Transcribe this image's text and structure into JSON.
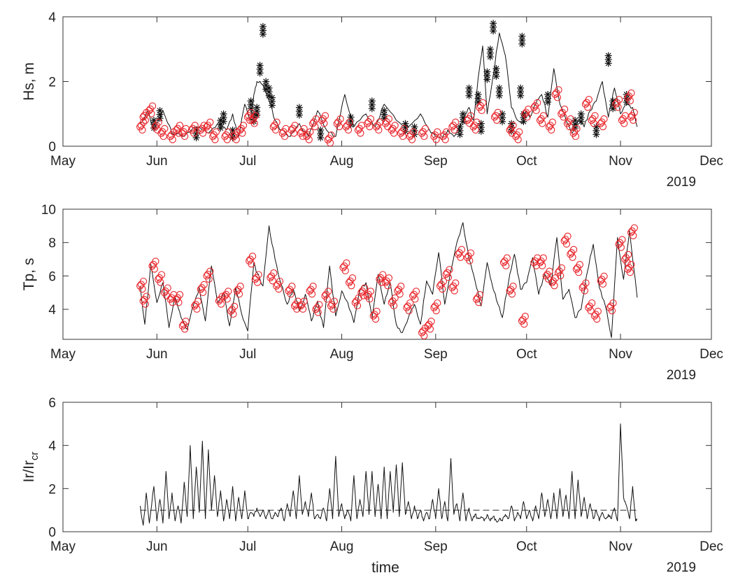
{
  "figure": {
    "xlabel": "time",
    "colors": {
      "line": "#111111",
      "marker_black": "#111111",
      "marker_red": "#e8242a",
      "axis": "#333333",
      "dash": "#111111"
    },
    "x_axis": {
      "range_days": [
        0,
        214
      ],
      "tick_days": [
        0,
        31,
        61,
        92,
        123,
        153,
        184,
        214
      ],
      "tick_labels": [
        "May",
        "Jun",
        "Jul",
        "Aug",
        "Sep",
        "Oct",
        "Nov",
        "Dec"
      ],
      "year_label": "2019"
    },
    "data_span_days": [
      25.5,
      189.5
    ]
  },
  "chart_data": [
    {
      "type": "line",
      "id": "hs",
      "ylabel": "Hs, m",
      "ylim": [
        0,
        4
      ],
      "yticks": [
        0,
        2,
        4
      ],
      "xlabel": "",
      "series": [
        {
          "name": "Hs",
          "style": "line",
          "x": [
            25.5,
            28,
            30,
            33,
            36,
            40,
            44,
            48,
            51,
            54,
            56,
            58,
            60,
            61,
            62,
            63,
            64,
            66,
            68,
            70,
            72,
            75,
            78,
            81,
            84,
            87,
            90,
            93,
            96,
            100,
            103,
            106,
            110,
            114,
            118,
            121,
            123,
            125,
            127,
            129,
            131,
            132.5,
            134,
            135.5,
            137,
            138.5,
            140,
            142,
            144,
            146,
            148,
            150,
            152,
            153,
            154,
            156,
            158,
            160,
            162,
            164,
            166,
            168,
            170,
            172,
            174,
            176,
            178,
            180,
            182,
            184,
            186,
            188,
            189.5
          ],
          "y": [
            0.7,
            1.1,
            0.5,
            1.1,
            0.4,
            0.3,
            0.6,
            0.4,
            0.7,
            0.5,
            1.0,
            0.3,
            1.3,
            1.0,
            0.8,
            1.6,
            2.0,
            1.9,
            1.4,
            0.8,
            0.5,
            0.3,
            0.7,
            0.3,
            1.1,
            0.5,
            0.3,
            1.6,
            0.6,
            1.0,
            0.6,
            1.3,
            0.8,
            0.6,
            1.0,
            0.5,
            0.3,
            0.2,
            0.5,
            0.3,
            0.6,
            0.9,
            1.2,
            0.8,
            2.1,
            3.1,
            1.0,
            2.2,
            3.5,
            2.8,
            1.2,
            0.8,
            0.7,
            1.1,
            0.9,
            1.3,
            1.6,
            0.9,
            2.4,
            1.3,
            0.8,
            0.4,
            0.8,
            0.6,
            1.1,
            1.4,
            2.0,
            0.9,
            1.8,
            1.0,
            1.3,
            1.2,
            0.6
          ]
        },
        {
          "name": "black-asterisk events",
          "style": "marker-star",
          "x": [
            30,
            32,
            44,
            52,
            53,
            56,
            62,
            63,
            64,
            65,
            66,
            67,
            68,
            69,
            78,
            85,
            95,
            102,
            106,
            113,
            116,
            131,
            132,
            134,
            137,
            138,
            140,
            141,
            142,
            143,
            144,
            145,
            148,
            151,
            151.5,
            152,
            160,
            169,
            171,
            176,
            180,
            181.5,
            186
          ],
          "y": [
            0.8,
            1.1,
            0.5,
            0.8,
            1.0,
            0.5,
            1.4,
            1.0,
            1.2,
            2.5,
            3.7,
            2.0,
            1.8,
            1.5,
            1.2,
            0.5,
            0.9,
            1.4,
            1.1,
            0.7,
            0.6,
            0.6,
            1.0,
            1.8,
            1.6,
            0.7,
            2.3,
            3.0,
            3.8,
            2.4,
            1.8,
            1.0,
            0.7,
            1.8,
            3.4,
            1.0,
            1.6,
            0.8,
            1.0,
            0.6,
            2.8,
            1.4,
            1.6
          ]
        },
        {
          "name": "red-circle events",
          "style": "marker-circle",
          "x": [
            26,
            27,
            29,
            31,
            33,
            36,
            38,
            40,
            43,
            46,
            48,
            50,
            54,
            57,
            59,
            61.5,
            63,
            70,
            73,
            76,
            79,
            81,
            83,
            86,
            88,
            91,
            94,
            98,
            101,
            104,
            107,
            109,
            112,
            115,
            119,
            123,
            126,
            129,
            134,
            136,
            138,
            143,
            148,
            150,
            153,
            156,
            158,
            161,
            163,
            165,
            167,
            169,
            173,
            175,
            178,
            183,
            185,
            187,
            188
          ],
          "y": [
            0.6,
            0.9,
            1.1,
            0.6,
            0.4,
            0.3,
            0.5,
            0.4,
            0.5,
            0.5,
            0.6,
            0.3,
            0.3,
            0.3,
            0.5,
            0.9,
            0.8,
            0.6,
            0.4,
            0.5,
            0.4,
            0.3,
            0.7,
            0.8,
            0.2,
            0.7,
            0.6,
            0.5,
            0.7,
            0.6,
            0.7,
            0.5,
            0.4,
            0.3,
            0.4,
            0.3,
            0.3,
            0.6,
            0.8,
            0.6,
            1.2,
            0.9,
            0.5,
            0.3,
            1.0,
            1.2,
            0.8,
            0.6,
            1.6,
            1.0,
            0.7,
            0.4,
            1.3,
            0.8,
            0.7,
            1.3,
            0.8,
            1.5,
            0.9
          ]
        }
      ]
    },
    {
      "type": "line",
      "id": "tp",
      "ylabel": "Tp, s",
      "ylim": [
        2.2,
        10
      ],
      "yticks": [
        4,
        6,
        8,
        10
      ],
      "xlabel": "",
      "series": [
        {
          "name": "Tp",
          "style": "line",
          "x": [
            25.5,
            27,
            29,
            31,
            33,
            35,
            37,
            39,
            41,
            43,
            45,
            47,
            49,
            51,
            53,
            55,
            57,
            59,
            61,
            63,
            64,
            66,
            68,
            70,
            72,
            74,
            76,
            78,
            80,
            82,
            84,
            86,
            88,
            90,
            92,
            94,
            96,
            98,
            100,
            102,
            104,
            106,
            108,
            110,
            112,
            114,
            116,
            118,
            120,
            122,
            124,
            126,
            128,
            130,
            132,
            134,
            136,
            138,
            140,
            142,
            143,
            145,
            147,
            149,
            151,
            153,
            155,
            157,
            159,
            161,
            163,
            165,
            167,
            169,
            171,
            173,
            175,
            177,
            179,
            181,
            183,
            185,
            187,
            189.5
          ],
          "y": [
            5.4,
            3.1,
            6.7,
            4.4,
            5.6,
            2.9,
            4.7,
            3.5,
            2.8,
            4.2,
            5.3,
            3.3,
            6.6,
            4.4,
            5.0,
            3.0,
            5.3,
            3.7,
            2.7,
            6.8,
            6.2,
            5.4,
            9.0,
            7.0,
            5.5,
            4.3,
            5.2,
            3.9,
            4.9,
            3.3,
            4.5,
            2.9,
            6.6,
            3.6,
            5.1,
            4.4,
            3.2,
            5.1,
            5.6,
            3.5,
            6.1,
            4.3,
            5.6,
            3.1,
            2.6,
            3.5,
            4.3,
            3.1,
            5.7,
            4.9,
            7.4,
            4.3,
            6.3,
            8.0,
            9.2,
            7.0,
            5.7,
            4.2,
            6.8,
            5.2,
            4.6,
            3.5,
            5.6,
            7.3,
            5.2,
            5.6,
            7.1,
            4.9,
            6.1,
            5.4,
            8.3,
            4.6,
            5.2,
            3.5,
            4.0,
            6.2,
            7.9,
            5.3,
            4.2,
            2.3,
            8.3,
            5.8,
            8.7,
            4.7
          ]
        },
        {
          "name": "red-circle events",
          "style": "marker-circle",
          "x": [
            26,
            27,
            30,
            32,
            34,
            36,
            38,
            40,
            44,
            46,
            48,
            52,
            54,
            56,
            58,
            62,
            64,
            69,
            71,
            75,
            77,
            79,
            82,
            84,
            87,
            89,
            93,
            95,
            97,
            99,
            101,
            103,
            105,
            107,
            109,
            111,
            114,
            116,
            119,
            121,
            123,
            125,
            127,
            129,
            131,
            134,
            137,
            146,
            148,
            152,
            156,
            158,
            160,
            162,
            164,
            166,
            168,
            170,
            172,
            174,
            176,
            178,
            181,
            184,
            186,
            187,
            188
          ],
          "y": [
            5.4,
            4.5,
            6.6,
            5.8,
            5.0,
            4.6,
            4.6,
            3.0,
            4.2,
            5.2,
            6.0,
            4.5,
            4.8,
            3.9,
            5.1,
            6.9,
            5.8,
            5.9,
            5.4,
            5.1,
            4.2,
            4.2,
            5.1,
            4.0,
            4.8,
            4.2,
            6.5,
            5.6,
            4.4,
            5.0,
            4.8,
            3.6,
            5.8,
            5.6,
            4.4,
            5.1,
            4.1,
            4.8,
            2.6,
            3.0,
            4.1,
            5.4,
            6.1,
            5.3,
            7.3,
            7.1,
            4.6,
            6.8,
            5.1,
            3.3,
            6.8,
            6.8,
            6.0,
            5.6,
            6.2,
            8.1,
            7.3,
            6.4,
            5.3,
            4.1,
            3.6,
            5.7,
            4.1,
            7.9,
            7.0,
            6.4,
            8.6
          ]
        }
      ]
    },
    {
      "type": "line",
      "id": "ir",
      "ylabel": "Ir/Ir",
      "ylabel_sub": "cr",
      "ylim": [
        0,
        6
      ],
      "yticks": [
        0,
        2,
        4,
        6
      ],
      "xlabel": "",
      "reference_line": {
        "y": 1,
        "style": "dashed"
      },
      "series": [
        {
          "name": "Ir/Ir_cr",
          "style": "line",
          "x": [
            25.5,
            26.5,
            27.5,
            28.5,
            30,
            31,
            32,
            33,
            34,
            35,
            36,
            37,
            38,
            39,
            40,
            41,
            42,
            43,
            44,
            45,
            46,
            47,
            48,
            49,
            50,
            51,
            52,
            53,
            54,
            55,
            56,
            57,
            58,
            59,
            60,
            61,
            62,
            63,
            64,
            65,
            66,
            67,
            68,
            69,
            70,
            71,
            72,
            73,
            74,
            75,
            76,
            77,
            78,
            79,
            80,
            81,
            82,
            83,
            84,
            85,
            86,
            87,
            88,
            89,
            90,
            91,
            92,
            93,
            94,
            95,
            96,
            97,
            98,
            99,
            100,
            101,
            102,
            103,
            104,
            105,
            106,
            107,
            108,
            109,
            110,
            111,
            112,
            113,
            114,
            115,
            116,
            117,
            118,
            119,
            120,
            121,
            122,
            123,
            124,
            125,
            126,
            127,
            128,
            129,
            130,
            131,
            132,
            133,
            134,
            135,
            136,
            137,
            138,
            139,
            140,
            141,
            142,
            143,
            144,
            145,
            146,
            147,
            148,
            149,
            150,
            151,
            152,
            153,
            154,
            155,
            156,
            157,
            158,
            159,
            160,
            161,
            162,
            163,
            164,
            165,
            166,
            167,
            168,
            169,
            170,
            171,
            172,
            173,
            174,
            175,
            176,
            177,
            178,
            179,
            180,
            181,
            182,
            183,
            184,
            185,
            186,
            187,
            188,
            189,
            189.5
          ],
          "y": [
            1.2,
            0.3,
            1.8,
            0.4,
            2.1,
            0.5,
            1.5,
            0.4,
            2.8,
            0.6,
            1.8,
            0.5,
            1.2,
            0.4,
            2.3,
            0.7,
            4.0,
            0.6,
            3.0,
            0.9,
            4.2,
            0.6,
            3.8,
            1.0,
            2.6,
            0.7,
            1.9,
            0.5,
            1.5,
            0.6,
            2.1,
            0.5,
            1.6,
            0.6,
            1.9,
            0.6,
            0.9,
            0.7,
            1.1,
            0.7,
            1.0,
            0.6,
            1.0,
            0.6,
            0.9,
            0.7,
            1.1,
            0.5,
            1.3,
            0.7,
            1.9,
            0.6,
            2.6,
            0.8,
            1.4,
            0.7,
            1.8,
            0.6,
            0.8,
            0.6,
            1.1,
            0.5,
            2.0,
            0.6,
            3.5,
            0.7,
            1.3,
            0.6,
            1.0,
            0.5,
            2.6,
            0.6,
            1.5,
            0.7,
            2.8,
            0.8,
            2.8,
            0.7,
            2.2,
            0.6,
            3.0,
            0.6,
            2.8,
            0.9,
            3.1,
            0.7,
            3.2,
            0.8,
            1.4,
            0.6,
            1.2,
            0.6,
            1.0,
            0.5,
            0.9,
            0.6,
            1.5,
            0.6,
            2.0,
            0.6,
            1.4,
            0.5,
            3.4,
            0.8,
            1.3,
            0.5,
            1.8,
            0.5,
            1.1,
            0.5,
            0.8,
            0.6,
            0.7,
            0.5,
            0.8,
            0.5,
            0.7,
            0.5,
            0.6,
            0.5,
            0.8,
            0.6,
            1.2,
            0.5,
            0.9,
            0.6,
            1.4,
            0.6,
            1.0,
            0.5,
            1.2,
            0.6,
            1.8,
            0.7,
            1.5,
            0.6,
            1.8,
            0.6,
            2.0,
            0.7,
            1.7,
            0.6,
            2.8,
            0.6,
            2.4,
            0.7,
            1.6,
            0.6,
            1.3,
            0.6,
            1.0,
            0.5,
            0.9,
            0.6,
            0.8,
            0.6,
            1.1,
            0.5,
            5.0,
            1.6,
            1.2,
            0.6,
            2.1,
            0.5,
            0.6
          ]
        }
      ]
    }
  ]
}
